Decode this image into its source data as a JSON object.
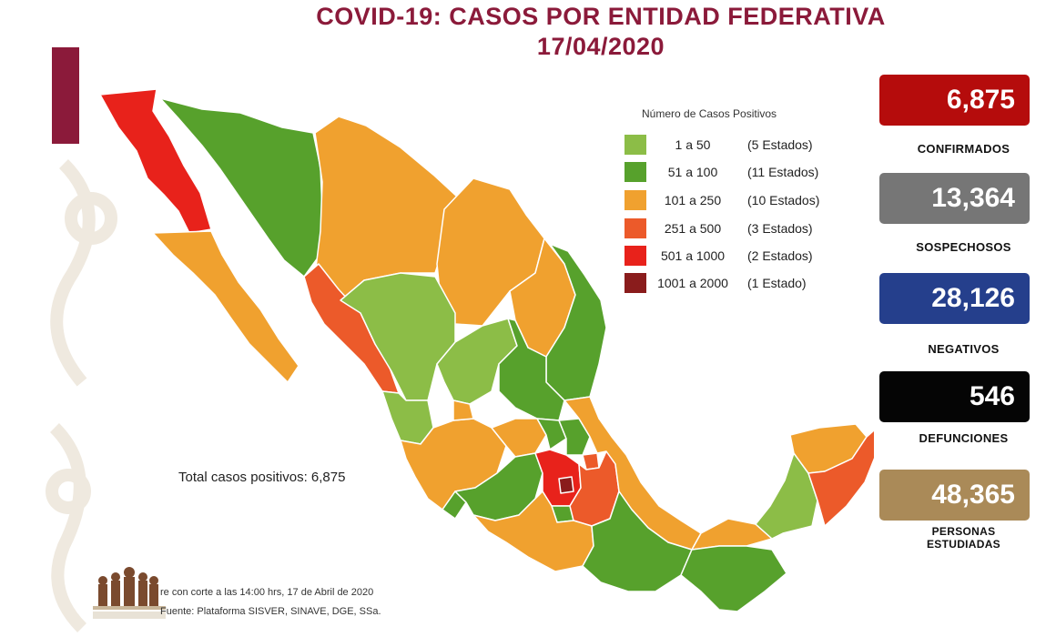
{
  "title": {
    "line1": "COVID-19: CASOS POR ENTIDAD FEDERATIVA",
    "line2": "17/04/2020"
  },
  "legend": {
    "title": "Número de Casos Positivos",
    "items": [
      {
        "range": "1 a 50",
        "count": "(5 Estados)",
        "color": "#8cbd47"
      },
      {
        "range": "51 a 100",
        "count": "(11 Estados)",
        "color": "#57a12c"
      },
      {
        "range": "101 a 250",
        "count": "(10 Estados)",
        "color": "#f0a12f"
      },
      {
        "range": "251 a 500",
        "count": "(3 Estados)",
        "color": "#ec5a2a"
      },
      {
        "range": "501 a 1000",
        "count": "(2 Estados)",
        "color": "#e8221b"
      },
      {
        "range": "1001 a 2000",
        "count": "(1 Estado)",
        "color": "#8a1c1c"
      }
    ]
  },
  "stats": {
    "confirmados": {
      "value": "6,875",
      "label": "CONFIRMADOS",
      "color": "#b50c0c"
    },
    "sospechosos": {
      "value": "13,364",
      "label": "SOSPECHOSOS",
      "color": "#767676"
    },
    "negativos": {
      "value": "28,126",
      "label": "NEGATIVOS",
      "color": "#253f8c"
    },
    "defunciones": {
      "value": "546",
      "label": "DEFUNCIONES",
      "color": "#050505"
    },
    "personas": {
      "value": "48,365",
      "label_line1": "PERSONAS",
      "label_line2": "ESTUDIADAS",
      "color": "#aa8a58"
    }
  },
  "total_label": "Total casos positivos: 6,875",
  "footer": {
    "line1": "re con corte a las 14:00 hrs, 17 de Abril de 2020",
    "line2": "Fuente: Plataforma SISVER, SINAVE, DGE, SSa."
  }
}
